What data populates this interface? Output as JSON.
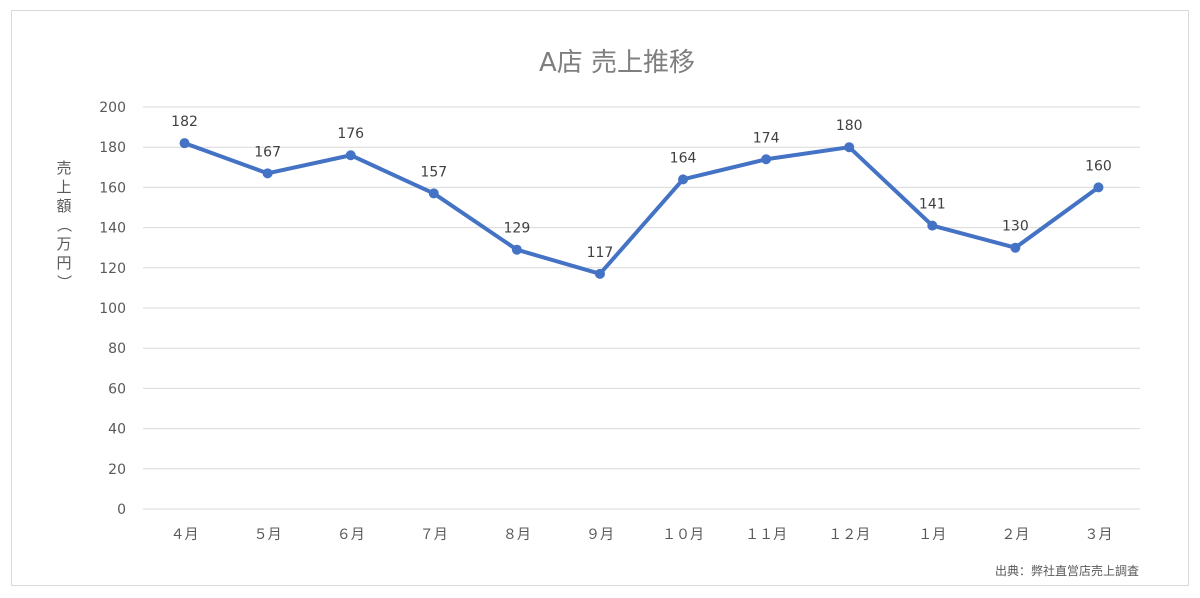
{
  "chart_data": {
    "type": "line",
    "title": "A店 売上推移",
    "ylabel": "売上額（万円）",
    "xlabel": "",
    "categories": [
      "４月",
      "５月",
      "６月",
      "７月",
      "８月",
      "９月",
      "１０月",
      "１１月",
      "１２月",
      "１月",
      "２月",
      "３月"
    ],
    "series": [
      {
        "values": [
          182,
          167,
          176,
          157,
          129,
          117,
          164,
          174,
          180,
          141,
          130,
          160
        ],
        "color": "#4472c4"
      }
    ],
    "ylim": [
      0,
      200
    ],
    "yticks": [
      0,
      20,
      40,
      60,
      80,
      100,
      120,
      140,
      160,
      180,
      200
    ],
    "grid": true,
    "data_labels": true,
    "source_note": "出典：弊社直営店売上調査"
  },
  "colors": {
    "series": "#4472c4",
    "grid": "#d9d9d9",
    "text": "#595959",
    "title": "#7f7f7f"
  }
}
